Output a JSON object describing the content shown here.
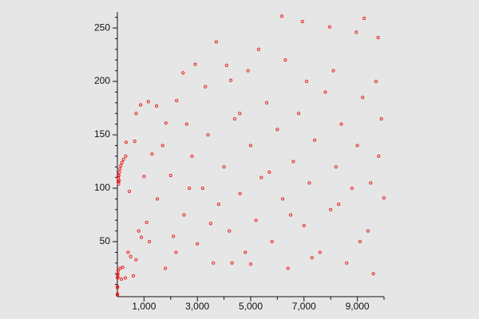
{
  "chart_data": {
    "type": "scatter",
    "x": [
      1,
      2,
      3,
      6,
      7,
      9,
      15,
      18,
      25,
      27,
      31,
      41,
      47,
      54,
      63,
      73,
      97,
      129,
      171,
      231,
      313,
      327,
      447,
      649,
      703,
      871,
      1161,
      1471,
      1819,
      2223,
      2463,
      2919,
      3711,
      4255,
      4591,
      5000,
      6171,
      6943,
      7963,
      8959,
      9257,
      9780,
      500,
      800,
      1200,
      1500,
      1800,
      2000,
      2200,
      2500,
      2800,
      3000,
      3200,
      3400,
      3600,
      3800,
      4000,
      4200,
      4400,
      4600,
      4800,
      5000,
      5200,
      5400,
      5600,
      5800,
      6000,
      6200,
      6400,
      6600,
      6800,
      7000,
      7200,
      7400,
      7600,
      7800,
      8000,
      8200,
      8400,
      8600,
      8800,
      9000,
      9200,
      9400,
      9600,
      9800,
      9999,
      9900,
      7100,
      8100,
      6300,
      5300,
      4100,
      3300,
      2600,
      1000,
      1300,
      1700,
      2100,
      2700,
      3500,
      4300,
      4900,
      5700,
      6500,
      7300,
      8300,
      9100,
      9500,
      9700,
      600,
      300,
      150,
      100,
      200,
      400,
      700,
      900,
      1100
    ],
    "y": [
      0,
      1,
      7,
      8,
      16,
      19,
      17,
      20,
      23,
      111,
      106,
      109,
      104,
      112,
      107,
      115,
      118,
      121,
      124,
      127,
      130,
      143,
      97,
      144,
      170,
      178,
      181,
      177,
      161,
      182,
      208,
      216,
      237,
      201,
      170,
      29,
      261,
      256,
      251,
      246,
      259,
      241,
      36,
      60,
      50,
      90,
      25,
      112,
      40,
      75,
      130,
      48,
      100,
      150,
      30,
      85,
      120,
      60,
      165,
      95,
      40,
      140,
      70,
      110,
      180,
      50,
      155,
      90,
      25,
      125,
      170,
      65,
      105,
      145,
      40,
      190,
      80,
      120,
      160,
      30,
      100,
      140,
      185,
      60,
      20,
      130,
      91,
      165,
      200,
      210,
      220,
      230,
      215,
      195,
      160,
      111,
      132,
      140,
      55,
      100,
      67,
      30,
      210,
      115,
      75,
      35,
      85,
      50,
      105,
      200,
      18,
      16,
      15,
      25,
      26,
      40,
      33,
      54,
      68
    ],
    "color": "#e8201c",
    "xlim": [
      0,
      10000
    ],
    "ylim": [
      0,
      265
    ],
    "xticks": [
      {
        "value": 1000,
        "label": "1,000"
      },
      {
        "value": 3000,
        "label": "3,000"
      },
      {
        "value": 5000,
        "label": "5,000"
      },
      {
        "value": 7000,
        "label": "7,000"
      },
      {
        "value": 9000,
        "label": "9,000"
      }
    ],
    "xminorticks": [
      2000,
      4000,
      6000,
      8000,
      10000
    ],
    "yticks": [
      50,
      100,
      150,
      200,
      250
    ],
    "yminorticks": [
      10,
      20,
      30,
      40,
      60,
      70,
      80,
      90,
      110,
      120,
      130,
      140,
      160,
      170,
      180,
      190,
      210,
      220,
      230,
      240,
      260
    ]
  }
}
